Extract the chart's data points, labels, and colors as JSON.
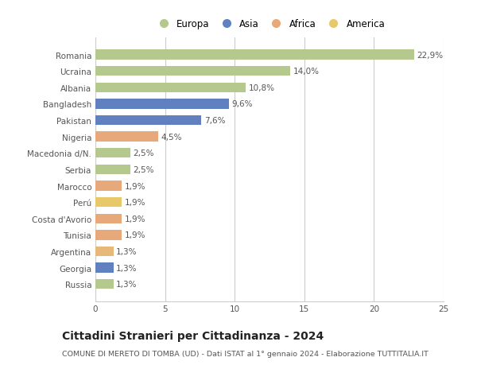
{
  "categories": [
    "Russia",
    "Georgia",
    "Argentina",
    "Tunisia",
    "Costa d'Avorio",
    "Perú",
    "Marocco",
    "Serbia",
    "Macedonia d/N.",
    "Nigeria",
    "Pakistan",
    "Bangladesh",
    "Albania",
    "Ucraina",
    "Romania"
  ],
  "values": [
    1.3,
    1.3,
    1.3,
    1.9,
    1.9,
    1.9,
    1.9,
    2.5,
    2.5,
    4.5,
    7.6,
    9.6,
    10.8,
    14.0,
    22.9
  ],
  "colors": [
    "#b5c98e",
    "#6080bf",
    "#e8b87a",
    "#e8a97a",
    "#e8a97a",
    "#e8c96a",
    "#e8a97a",
    "#b5c98e",
    "#b5c98e",
    "#e8a97a",
    "#6080bf",
    "#6080bf",
    "#b5c98e",
    "#b5c98e",
    "#b5c98e"
  ],
  "labels": [
    "1,3%",
    "1,3%",
    "1,3%",
    "1,9%",
    "1,9%",
    "1,9%",
    "1,9%",
    "2,5%",
    "2,5%",
    "4,5%",
    "7,6%",
    "9,6%",
    "10,8%",
    "14,0%",
    "22,9%"
  ],
  "xlim": [
    0,
    25
  ],
  "xticks": [
    0,
    5,
    10,
    15,
    20,
    25
  ],
  "legend_labels": [
    "Europa",
    "Asia",
    "Africa",
    "America"
  ],
  "legend_colors": [
    "#b5c98e",
    "#6080bf",
    "#e8a97a",
    "#e8c96a"
  ],
  "title": "Cittadini Stranieri per Cittadinanza - 2024",
  "subtitle": "COMUNE DI MERETO DI TOMBA (UD) - Dati ISTAT al 1° gennaio 2024 - Elaborazione TUTTITALIA.IT",
  "background_color": "#ffffff",
  "grid_color": "#cccccc",
  "bar_height": 0.6,
  "label_fontsize": 7.5,
  "tick_fontsize": 7.5,
  "title_fontsize": 10,
  "subtitle_fontsize": 6.8,
  "legend_fontsize": 8.5
}
